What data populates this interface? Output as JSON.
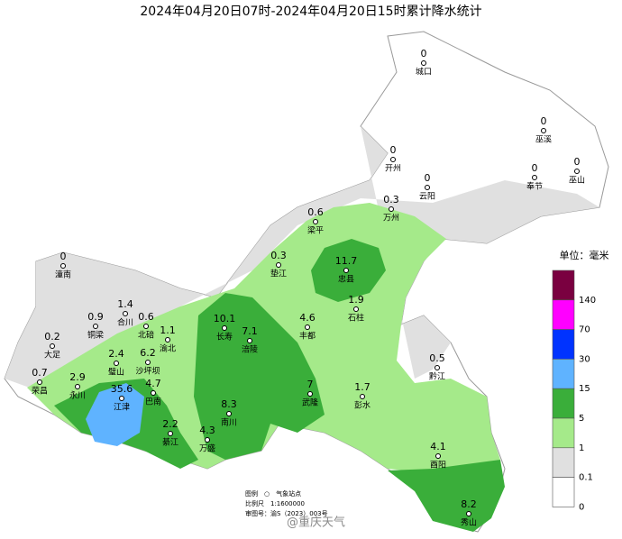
{
  "title": "2024年04月20日07时-2024年04月20日15时累计降水统计",
  "stations": [
    {
      "name": "城口",
      "value": 0
    },
    {
      "name": "巫溪",
      "value": 0
    },
    {
      "name": "开州",
      "value": 0
    },
    {
      "name": "巫山",
      "value": 0
    },
    {
      "name": "奉节",
      "value": 0
    },
    {
      "name": "云阳",
      "value": 0
    },
    {
      "name": "万州",
      "value": 0.3
    },
    {
      "name": "梁平",
      "value": 0.6
    },
    {
      "name": "垫江",
      "value": 0.3
    },
    {
      "name": "忠县",
      "value": 11.7
    },
    {
      "name": "潼南",
      "value": 0
    },
    {
      "name": "石柱",
      "value": 1.9
    },
    {
      "name": "合川",
      "value": 1.4
    },
    {
      "name": "铜梁",
      "value": 0.9
    },
    {
      "name": "北碚",
      "value": 0.6
    },
    {
      "name": "渝北",
      "value": 1.1
    },
    {
      "name": "长寿",
      "value": 10.1
    },
    {
      "name": "涪陵",
      "value": 7.1
    },
    {
      "name": "丰都",
      "value": 4.6
    },
    {
      "name": "大足",
      "value": 0.2
    },
    {
      "name": "璧山",
      "value": 2.4
    },
    {
      "name": "沙坪坝",
      "value": 6.2
    },
    {
      "name": "黔江",
      "value": 0.5
    },
    {
      "name": "荣昌",
      "value": 0.7
    },
    {
      "name": "永川",
      "value": 2.9
    },
    {
      "name": "巴南",
      "value": 4.7
    },
    {
      "name": "江津",
      "value": 35.6
    },
    {
      "name": "武隆",
      "value": 7
    },
    {
      "name": "彭水",
      "value": 1.7
    },
    {
      "name": "綦江",
      "value": 2.2
    },
    {
      "name": "南川",
      "value": 8.3
    },
    {
      "name": "万盛",
      "value": 4.3
    },
    {
      "name": "酉阳",
      "value": 4.1
    },
    {
      "name": "秀山",
      "value": 8.2
    }
  ],
  "legend": {
    "title": "单位：毫米",
    "levels": [
      140,
      70,
      30,
      15,
      5,
      1,
      0.1,
      0
    ],
    "colors": [
      "#7a0040",
      "#ff00ff",
      "#0033ff",
      "#5fb3ff",
      "#3aae3a",
      "#a5ea8a",
      "#e0e0e0",
      "#ffffff"
    ]
  },
  "notes": [
    "图例　○　气象站点",
    "比例尺　1:1600000",
    "审图号：渝S（2023）003号"
  ],
  "watermark": "@重庆天气"
}
